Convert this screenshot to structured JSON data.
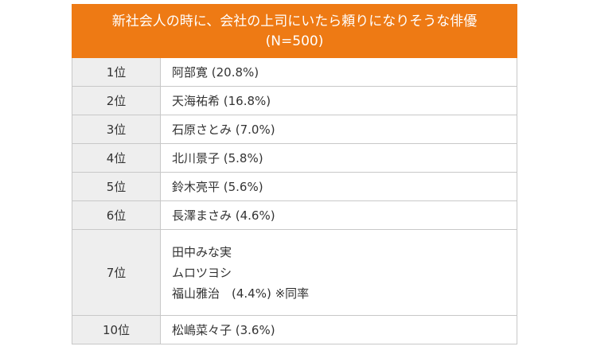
{
  "header": {
    "title_line1": "新社会人の時に、会社の上司にいたら頼りになりそうな俳優",
    "title_line2": "(N=500)"
  },
  "rows": [
    {
      "rank": "1位",
      "names": [
        "阿部寛 (20.8%)"
      ]
    },
    {
      "rank": "2位",
      "names": [
        "天海祐希 (16.8%)"
      ]
    },
    {
      "rank": "3位",
      "names": [
        "石原さとみ (7.0%)"
      ]
    },
    {
      "rank": "4位",
      "names": [
        "北川景子 (5.8%)"
      ]
    },
    {
      "rank": "5位",
      "names": [
        "鈴木亮平 (5.6%)"
      ]
    },
    {
      "rank": "6位",
      "names": [
        "長澤まさみ (4.6%)"
      ]
    },
    {
      "rank": "7位",
      "names": [
        "田中みな実",
        "ムロツヨシ",
        "福山雅治　(4.4%) ※同率"
      ]
    },
    {
      "rank": "10位",
      "names": [
        "松嶋菜々子 (3.6%)"
      ]
    }
  ]
}
